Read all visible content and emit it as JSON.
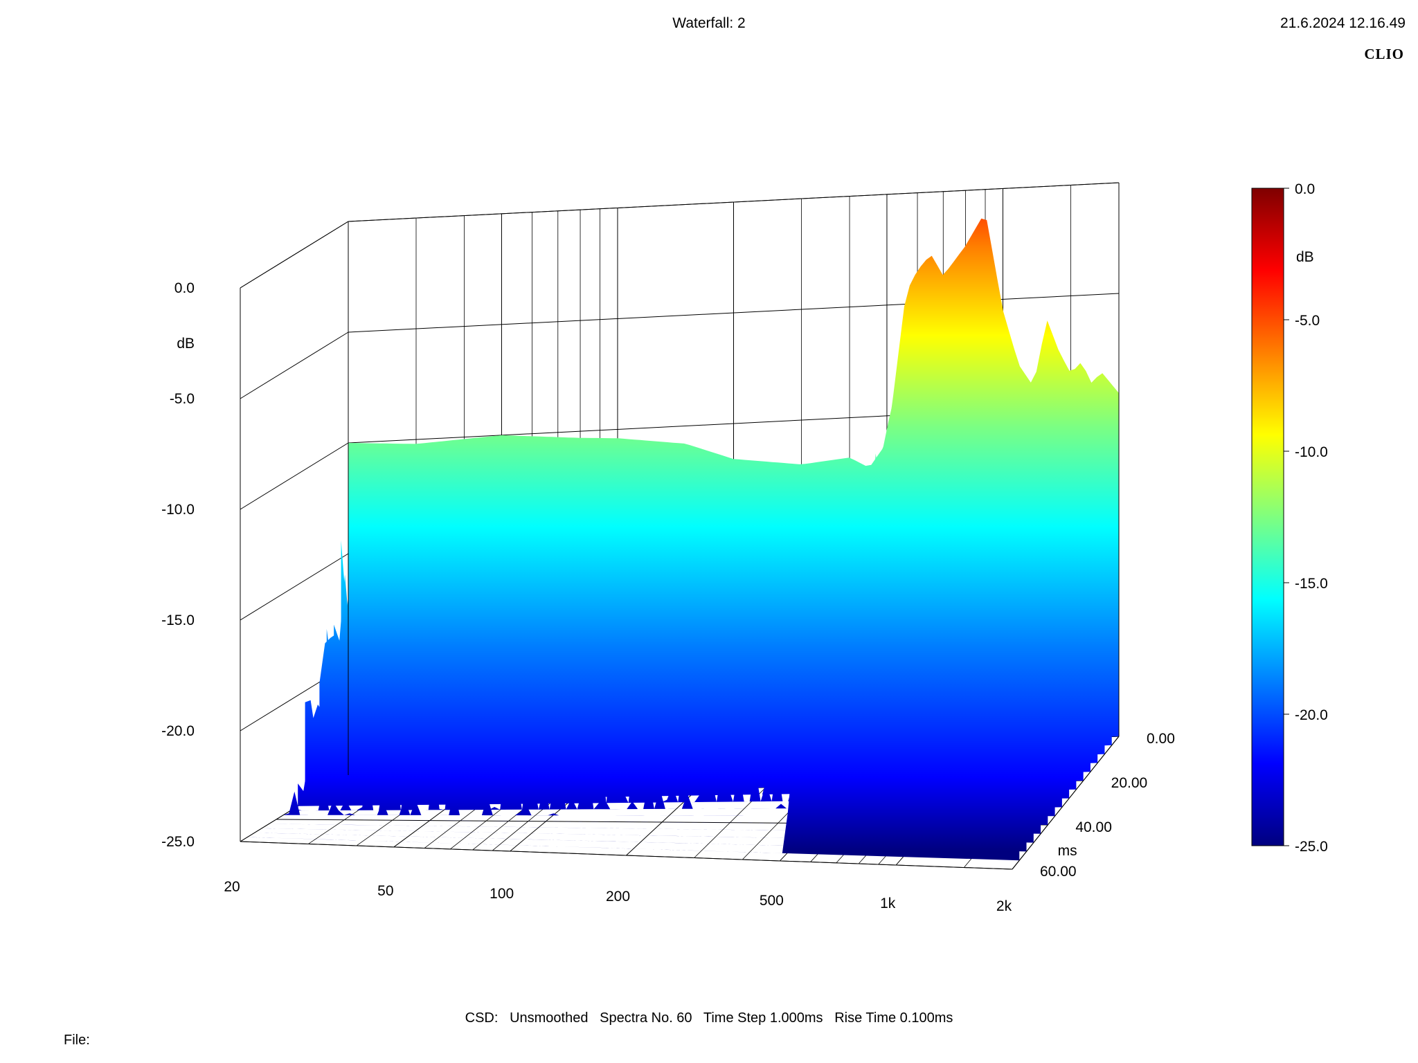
{
  "header": {
    "title": "Waterfall: 2",
    "datetime": "21.6.2024 12.16.49",
    "brand": "CLIO"
  },
  "footer": {
    "params": "CSD:   Unsmoothed   Spectra No. 60   Time Step 1.000ms   Rise Time 0.100ms",
    "file_label": "File:"
  },
  "chart_data": {
    "type": "area",
    "style": "3D waterfall (cumulative spectral decay)",
    "x_axis": {
      "scale": "log",
      "range_hz": [
        20,
        2000
      ],
      "tick_labels": [
        "20",
        "50",
        "100",
        "200",
        "500",
        "1k",
        "2k"
      ],
      "tick_values": [
        20,
        50,
        100,
        200,
        500,
        1000,
        2000
      ]
    },
    "y_axis": {
      "label": "dB",
      "range": [
        -25,
        0
      ],
      "tick_labels": [
        "0.0",
        "-5.0",
        "-10.0",
        "-15.0",
        "-20.0",
        "-25.0"
      ],
      "tick_values": [
        0,
        -5,
        -10,
        -15,
        -20,
        -25
      ]
    },
    "z_axis": {
      "label": "ms",
      "range": [
        0,
        60
      ],
      "tick_labels": [
        "0.00",
        "20.00",
        "40.00",
        "60.00"
      ],
      "tick_values": [
        0,
        20,
        40,
        60
      ]
    },
    "spectra_count": 60,
    "time_step_ms": 1.0,
    "colorbar": {
      "label": "dB",
      "range": [
        -25,
        0
      ],
      "tick_labels": [
        "0.0",
        "-5.0",
        "-10.0",
        "-15.0",
        "-20.0",
        "-25.0"
      ],
      "tick_values": [
        0,
        -5,
        -10,
        -15,
        -20,
        -25
      ],
      "colors": [
        "#00007f",
        "#0000ff",
        "#007fff",
        "#00ffff",
        "#7fff7f",
        "#ffff00",
        "#ff7f00",
        "#ff0000",
        "#7f0000"
      ]
    },
    "first_spectrum_db": {
      "freq_hz": [
        20,
        30,
        50,
        80,
        100,
        150,
        200,
        300,
        400,
        450,
        500,
        520,
        560,
        600,
        650,
        700,
        800,
        900,
        1000,
        1100,
        1200,
        1300,
        1400,
        1500,
        1600,
        1700,
        1800,
        2000
      ],
      "level_db": [
        -10,
        -10.2,
        -10,
        -10.3,
        -10.4,
        -10.8,
        -11.6,
        -12.0,
        -11.8,
        -12.3,
        -11.2,
        -9.0,
        -4.5,
        -3.5,
        -2.8,
        -3.8,
        -2.5,
        -1.0,
        -5.5,
        -8.0,
        -9.0,
        -6.0,
        -7.5,
        -8.5,
        -8.0,
        -9.0,
        -8.5,
        -9.5
      ]
    }
  }
}
